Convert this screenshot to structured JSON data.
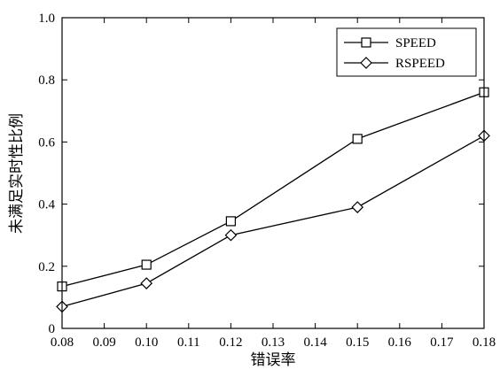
{
  "chart_data": {
    "type": "line",
    "title": "",
    "xlabel": "错误率",
    "ylabel": "未满足实时性比例",
    "xlim": [
      0.08,
      0.18
    ],
    "ylim": [
      0,
      1.0
    ],
    "xticks": [
      0.08,
      0.09,
      0.1,
      0.11,
      0.12,
      0.13,
      0.14,
      0.15,
      0.16,
      0.17,
      0.18
    ],
    "xtick_labels": [
      "0.08",
      "0.09",
      "0.10",
      "0.11",
      "0.12",
      "0.13",
      "0.14",
      "0.15",
      "0.16",
      "0.17",
      "0.18"
    ],
    "yticks": [
      0,
      0.2,
      0.4,
      0.6,
      0.8,
      1.0
    ],
    "ytick_labels": [
      "0",
      "0.2",
      "0.4",
      "0.6",
      "0.8",
      "1.0"
    ],
    "grid": false,
    "legend_position": "top-right",
    "series": [
      {
        "name": "SPEED",
        "marker": "square",
        "x": [
          0.08,
          0.1,
          0.12,
          0.15,
          0.18
        ],
        "y": [
          0.135,
          0.205,
          0.345,
          0.61,
          0.76
        ]
      },
      {
        "name": "RSPEED",
        "marker": "diamond",
        "x": [
          0.08,
          0.1,
          0.12,
          0.15,
          0.18
        ],
        "y": [
          0.07,
          0.145,
          0.3,
          0.39,
          0.62
        ]
      }
    ],
    "colors": {
      "line": "#000000",
      "marker_fill": "#ffffff",
      "background": "#ffffff"
    }
  }
}
